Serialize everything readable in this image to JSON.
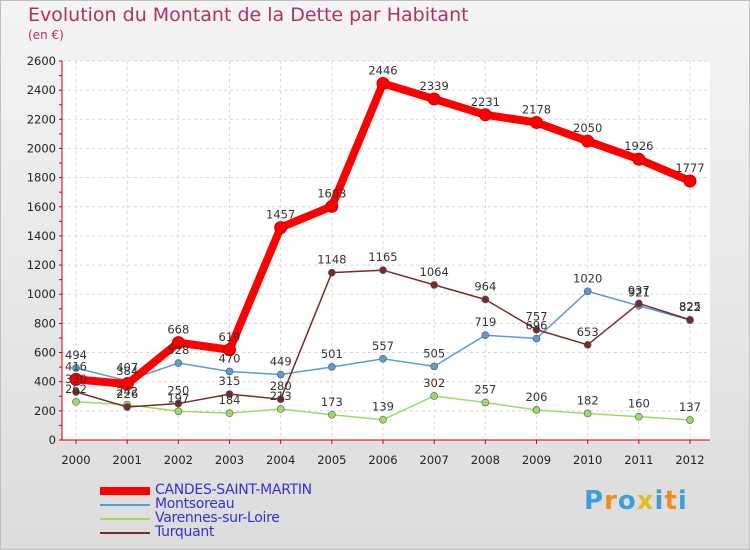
{
  "title": "Evolution du Montant de la Dette par Habitant",
  "unit_label": "(en €)",
  "logo": {
    "letters": [
      "P",
      "r",
      "o",
      "x",
      "i",
      "t",
      "i"
    ],
    "colors": [
      "#3aa0d8",
      "#f08c1e",
      "#3aa0d8",
      "#e0c020",
      "#3aa0d8",
      "#f08c1e",
      "#3aa0d8"
    ]
  },
  "chart_data": {
    "type": "line",
    "x": [
      "2000",
      "2001",
      "2002",
      "2003",
      "2004",
      "2005",
      "2006",
      "2007",
      "2008",
      "2009",
      "2010",
      "2011",
      "2012"
    ],
    "ylim": [
      0,
      2600
    ],
    "yticks": [
      "0",
      "200",
      "400",
      "600",
      "800",
      "1000",
      "1200",
      "1400",
      "1600",
      "1800",
      "2000",
      "2200",
      "2400",
      "2600"
    ],
    "grid": true,
    "legend_position": "bottom-left",
    "series": [
      {
        "name": "CANDES-SAINT-MARTIN",
        "color": "#ff0000",
        "values": [
          416,
          384,
          668,
          619,
          1457,
          1603,
          2446,
          2339,
          2231,
          2178,
          2050,
          1926,
          1777
        ],
        "labels": [
          "416",
          "384",
          "668",
          "619",
          "1457",
          "1603",
          "2446",
          "2339",
          "2231",
          "2178",
          "2050",
          "1926",
          "1777"
        ]
      },
      {
        "name": "Montsoreau",
        "color": "#5b9bd5",
        "values": [
          494,
          407,
          528,
          470,
          449,
          501,
          557,
          505,
          719,
          696,
          1020,
          921,
          822
        ],
        "labels": [
          "494",
          "407",
          "528",
          "470",
          "449",
          "501",
          "557",
          "505",
          "719",
          "696",
          "1020",
          "921",
          "822"
        ]
      },
      {
        "name": "Varennes-sur-Loire",
        "color": "#99dd66",
        "values": [
          262,
          242,
          197,
          184,
          213,
          173,
          139,
          302,
          257,
          206,
          182,
          160,
          137
        ],
        "labels": [
          "262",
          "242",
          "197",
          "184",
          "213",
          "173",
          "139",
          "302",
          "257",
          "206",
          "182",
          "160",
          "137"
        ]
      },
      {
        "name": "Turquant",
        "color": "#7b2a2a",
        "values": [
          330,
          226,
          250,
          315,
          280,
          1148,
          1165,
          1064,
          964,
          757,
          653,
          937,
          825
        ],
        "labels": [
          "330",
          "226",
          "250",
          "315",
          "280",
          "1148",
          "1165",
          "1064",
          "964",
          "757",
          "653",
          "937",
          "825"
        ]
      }
    ]
  }
}
